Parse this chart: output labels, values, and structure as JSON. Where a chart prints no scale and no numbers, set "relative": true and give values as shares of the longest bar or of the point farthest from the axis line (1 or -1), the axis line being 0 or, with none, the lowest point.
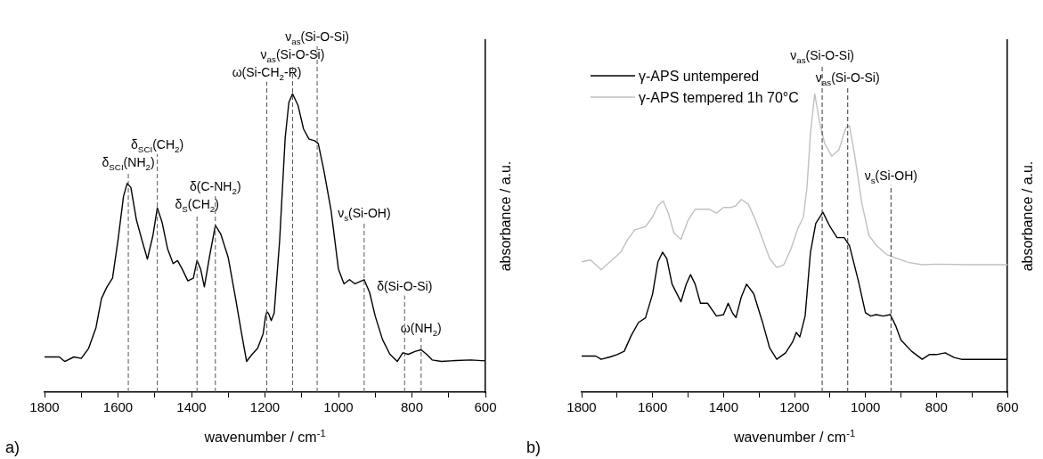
{
  "chart_data": [
    {
      "type": "line",
      "relative": true,
      "xlabel": "wavenumber / cm$^{-1}$",
      "ylabel": "absorbance / a.u.",
      "xlim": [
        1800,
        600
      ],
      "xticks": [
        1800,
        {
          "value": 1700,
          "label": null
        },
        1600,
        {
          "value": 1500,
          "label": null
        },
        1400,
        {
          "value": 1300,
          "label": null
        },
        1200,
        {
          "value": 1100,
          "label": null
        },
        1000,
        {
          "value": 900,
          "label": null
        },
        800,
        {
          "value": 700,
          "label": null
        },
        600
      ],
      "marker": "none",
      "line_style": "solid",
      "legend": false,
      "grid": false,
      "series": [
        {
          "color": "#000000",
          "x": [
            1800,
            1760,
            1745,
            1720,
            1700,
            1680,
            1660,
            1645,
            1630,
            1615,
            1600,
            1585,
            1575,
            1565,
            1550,
            1535,
            1520,
            1505,
            1493,
            1480,
            1465,
            1450,
            1438,
            1425,
            1410,
            1395,
            1385,
            1375,
            1365,
            1350,
            1335,
            1320,
            1300,
            1280,
            1265,
            1250,
            1235,
            1220,
            1205,
            1199,
            1195,
            1190,
            1183,
            1175,
            1160,
            1145,
            1135,
            1125,
            1110,
            1095,
            1080,
            1065,
            1055,
            1040,
            1020,
            1000,
            985,
            970,
            955,
            930,
            915,
            900,
            880,
            860,
            840,
            825,
            810,
            790,
            775,
            760,
            745,
            720,
            680,
            640,
            600
          ],
          "values": [
            0.118,
            0.118,
            0.103,
            0.118,
            0.113,
            0.147,
            0.216,
            0.314,
            0.353,
            0.382,
            0.51,
            0.657,
            0.7,
            0.686,
            0.578,
            0.51,
            0.446,
            0.525,
            0.618,
            0.569,
            0.48,
            0.431,
            0.441,
            0.412,
            0.373,
            0.382,
            0.441,
            0.412,
            0.353,
            0.461,
            0.559,
            0.529,
            0.451,
            0.314,
            0.206,
            0.103,
            0.127,
            0.147,
            0.196,
            0.25,
            0.27,
            0.263,
            0.24,
            0.265,
            0.51,
            0.853,
            0.971,
            1.0,
            0.961,
            0.882,
            0.848,
            0.843,
            0.833,
            0.745,
            0.608,
            0.412,
            0.363,
            0.377,
            0.363,
            0.377,
            0.333,
            0.255,
            0.176,
            0.127,
            0.103,
            0.132,
            0.127,
            0.137,
            0.142,
            0.127,
            0.108,
            0.103,
            0.106,
            0.108,
            0.105
          ]
        }
      ],
      "ref_lines": [
        {
          "axis": "x",
          "value": 1572,
          "label": "δ$_{SCI}$(NH$_{2}$)",
          "color": "#555555",
          "line_style": "dashed"
        },
        {
          "axis": "x",
          "value": 1493,
          "label": "δ$_{SCI}$(CH$_{2}$)",
          "color": "#555555",
          "line_style": "dashed"
        },
        {
          "axis": "x",
          "value": 1385,
          "label": "δ$_{S}$(CH$_{2}$)",
          "color": "#555555",
          "line_style": "dashed"
        },
        {
          "axis": "x",
          "value": 1335,
          "label": "δ(C-NH$_{2}$)",
          "color": "#555555",
          "line_style": "dashed"
        },
        {
          "axis": "x",
          "value": 1195,
          "label": "ω(Si-CH$_{2}$-R)",
          "color": "#555555",
          "line_style": "dashed"
        },
        {
          "axis": "x",
          "value": 1125,
          "label": "ν$_{as}$(Si-O-Si)",
          "color": "#555555",
          "line_style": "dashed"
        },
        {
          "axis": "x",
          "value": 1058,
          "label": "ν$_{as}$(Si-O-Si)",
          "color": "#555555",
          "line_style": "dashed"
        },
        {
          "axis": "x",
          "value": 930,
          "label": "ν$_{s}$(Si-OH)",
          "color": "#555555",
          "line_style": "dashed"
        },
        {
          "axis": "x",
          "value": 820,
          "label": "δ(Si-O-Si)",
          "color": "#555555",
          "line_style": "dashed"
        },
        {
          "axis": "x",
          "value": 775,
          "label": "ω(NH$_{2}$)",
          "color": "#555555",
          "line_style": "dashed"
        }
      ],
      "annotations": [
        "a)"
      ]
    },
    {
      "type": "line",
      "relative": true,
      "xlabel": "wavenumber / cm$^{-1}$",
      "ylabel": "absorbance / a.u.",
      "xlim": [
        1800,
        600
      ],
      "xticks": [
        1800,
        {
          "value": 1700,
          "label": null
        },
        1600,
        {
          "value": 1500,
          "label": null
        },
        1400,
        {
          "value": 1300,
          "label": null
        },
        1200,
        {
          "value": 1100,
          "label": null
        },
        1000,
        {
          "value": 900,
          "label": null
        },
        800,
        {
          "value": 700,
          "label": null
        },
        600
      ],
      "marker": "none",
      "line_style": "solid",
      "legend": "top left",
      "grid": false,
      "series": [
        {
          "name": "γ-APS untempered",
          "color": "#000000",
          "x": [
            1800,
            1760,
            1745,
            1720,
            1700,
            1680,
            1660,
            1640,
            1620,
            1600,
            1585,
            1572,
            1560,
            1545,
            1520,
            1505,
            1493,
            1480,
            1465,
            1445,
            1420,
            1400,
            1387,
            1375,
            1365,
            1350,
            1335,
            1315,
            1290,
            1270,
            1250,
            1225,
            1205,
            1195,
            1185,
            1170,
            1155,
            1140,
            1120,
            1100,
            1080,
            1060,
            1045,
            1020,
            1000,
            985,
            970,
            950,
            930,
            915,
            900,
            870,
            840,
            820,
            800,
            775,
            750,
            730,
            600
          ],
          "values": [
            0.121,
            0.121,
            0.11,
            0.118,
            0.126,
            0.137,
            0.19,
            0.233,
            0.249,
            0.329,
            0.436,
            0.469,
            0.448,
            0.362,
            0.303,
            0.362,
            0.394,
            0.362,
            0.298,
            0.298,
            0.255,
            0.26,
            0.298,
            0.266,
            0.25,
            0.319,
            0.362,
            0.33,
            0.234,
            0.148,
            0.11,
            0.132,
            0.169,
            0.2,
            0.185,
            0.255,
            0.469,
            0.566,
            0.603,
            0.555,
            0.518,
            0.518,
            0.491,
            0.373,
            0.266,
            0.255,
            0.26,
            0.255,
            0.26,
            0.223,
            0.175,
            0.137,
            0.11,
            0.126,
            0.126,
            0.132,
            0.116,
            0.11,
            0.11
          ]
        },
        {
          "name": "γ-APS tempered 1h 70°C",
          "color": "#c0c0c0",
          "x": [
            1800,
            1775,
            1760,
            1745,
            1720,
            1690,
            1670,
            1650,
            1620,
            1600,
            1585,
            1570,
            1555,
            1540,
            1520,
            1500,
            1480,
            1460,
            1440,
            1420,
            1400,
            1380,
            1365,
            1350,
            1330,
            1310,
            1290,
            1270,
            1250,
            1230,
            1210,
            1190,
            1175,
            1165,
            1155,
            1143,
            1130,
            1115,
            1095,
            1075,
            1055,
            1045,
            1030,
            1010,
            990,
            970,
            940,
            910,
            880,
            840,
            800,
            700,
            600
          ],
          "values": [
            0.437,
            0.443,
            0.427,
            0.41,
            0.437,
            0.469,
            0.512,
            0.544,
            0.555,
            0.587,
            0.625,
            0.641,
            0.598,
            0.534,
            0.512,
            0.576,
            0.613,
            0.613,
            0.613,
            0.6,
            0.619,
            0.619,
            0.625,
            0.646,
            0.63,
            0.577,
            0.512,
            0.448,
            0.418,
            0.427,
            0.48,
            0.55,
            0.587,
            0.684,
            0.866,
            1.0,
            0.909,
            0.834,
            0.791,
            0.812,
            0.887,
            0.893,
            0.791,
            0.632,
            0.525,
            0.493,
            0.461,
            0.448,
            0.435,
            0.427,
            0.429,
            0.427,
            0.427
          ]
        }
      ],
      "ref_lines": [
        {
          "axis": "x",
          "value": 1122,
          "label": "ν$_{as}$(Si-O-Si)",
          "color": "#333333",
          "line_style": "dashed"
        },
        {
          "axis": "x",
          "value": 1050,
          "label": "ν$_{as}$(Si-O-Si)",
          "color": "#333333",
          "line_style": "dashed"
        },
        {
          "axis": "x",
          "value": 928,
          "label": "ν$_{s}$(Si-OH)",
          "color": "#333333",
          "line_style": "dashed"
        }
      ],
      "annotations": [
        "b)"
      ]
    }
  ]
}
